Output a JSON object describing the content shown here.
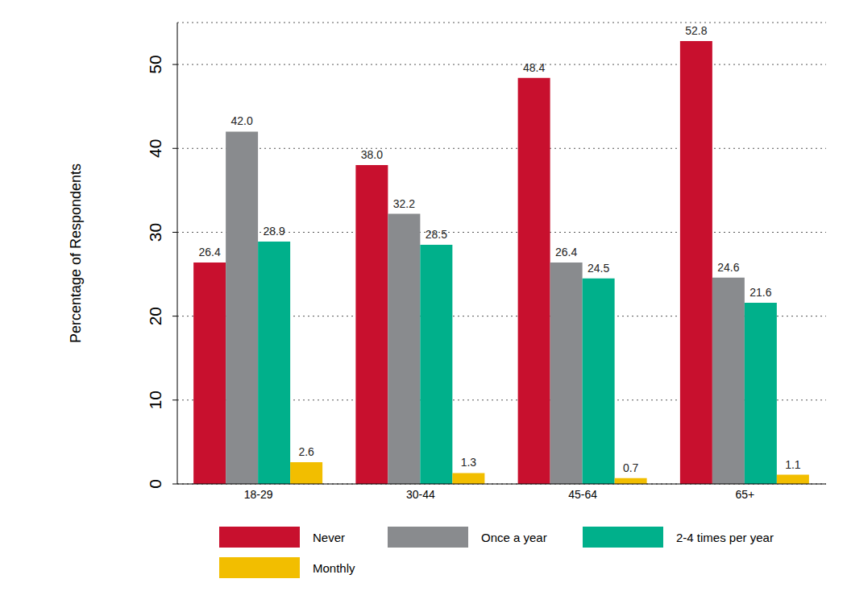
{
  "chart_data": {
    "type": "bar",
    "y_label": "Percentage of Respondents",
    "categories": [
      "18-29",
      "30-44",
      "45-64",
      "65+"
    ],
    "series": [
      {
        "name": "Never",
        "color": "#c8102e",
        "values": [
          26.4,
          38.0,
          48.4,
          52.8
        ],
        "value_labels": [
          "26.4",
          "38.0",
          "48.4",
          "52.8"
        ]
      },
      {
        "name": "Once a year",
        "color": "#898b8e",
        "values": [
          42.0,
          32.2,
          26.4,
          24.6
        ],
        "value_labels": [
          "42.0",
          "32.2",
          "26.4",
          "24.6"
        ]
      },
      {
        "name": "2-4 times per year",
        "color": "#00b08b",
        "values": [
          28.9,
          28.5,
          24.5,
          21.6
        ],
        "value_labels": [
          "28.9",
          "28.5",
          "24.5",
          "21.6"
        ]
      },
      {
        "name": "Monthly",
        "color": "#f2be00",
        "values": [
          2.6,
          1.3,
          0.7,
          1.1
        ],
        "value_labels": [
          "2.6",
          "1.3",
          "0.7",
          "1.1"
        ]
      }
    ],
    "ylim": [
      0,
      55
    ],
    "yticks": [
      0,
      10,
      20,
      30,
      40,
      50
    ],
    "grid": true,
    "legend": "bottom",
    "data_labels": true
  }
}
